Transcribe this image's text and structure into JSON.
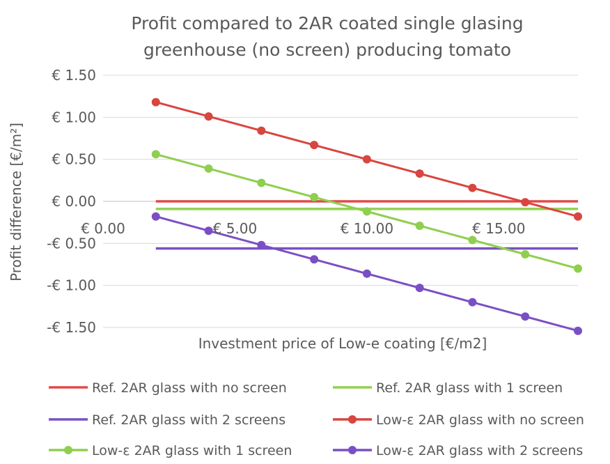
{
  "chart_data": {
    "type": "line",
    "title": "Profit compared to 2AR coated single glasing greenhouse (no screen) producing tomato",
    "title_lines": [
      "Profit compared to 2AR coated single glasing",
      "greenhouse (no screen) producing tomato"
    ],
    "xlabel": "Investment price of Low-e coating [€/m2]",
    "ylabel": "Profit difference [€/m²]",
    "xlim": [
      0,
      18
    ],
    "ylim": [
      -1.5,
      1.5
    ],
    "x_ticks": [
      0,
      5,
      10,
      15
    ],
    "x_tick_labels": [
      "€ 0.00",
      "€ 5.00",
      "€ 10.00",
      "€ 15.00"
    ],
    "y_ticks": [
      1.5,
      1.0,
      0.5,
      0.0,
      -0.5,
      -1.0,
      -1.5
    ],
    "y_tick_labels": [
      "€ 1.50",
      "€ 1.00",
      "€ 0.50",
      "€ 0.00",
      "-€ 0.50",
      "-€ 1.00",
      "-€ 1.50"
    ],
    "grid": "horizontal",
    "legend_position": "bottom",
    "series": [
      {
        "name": "Ref. 2AR glass with no screen",
        "color": "#e04a4a",
        "markers": false,
        "x": [
          2,
          18
        ],
        "y": [
          0.0,
          0.0
        ]
      },
      {
        "name": "Ref. 2AR glass with 1 screen",
        "color": "#92d050",
        "markers": false,
        "x": [
          2,
          18
        ],
        "y": [
          -0.09,
          -0.09
        ]
      },
      {
        "name": "Ref. 2AR glass with 2 screens",
        "color": "#7a4fc4",
        "markers": false,
        "x": [
          2,
          18
        ],
        "y": [
          -0.56,
          -0.56
        ]
      },
      {
        "name": "Low-ε 2AR glass with no screen",
        "color": "#d9453f",
        "markers": true,
        "x": [
          2,
          4,
          6,
          8,
          10,
          12,
          14,
          16,
          18
        ],
        "y": [
          1.18,
          1.01,
          0.84,
          0.67,
          0.5,
          0.33,
          0.16,
          -0.01,
          -0.18
        ]
      },
      {
        "name": "Low-ε 2AR glass with 1 screen",
        "color": "#8fcf4f",
        "markers": true,
        "x": [
          2,
          4,
          6,
          8,
          10,
          12,
          14,
          16,
          18
        ],
        "y": [
          0.56,
          0.39,
          0.22,
          0.05,
          -0.12,
          -0.29,
          -0.46,
          -0.63,
          -0.8
        ]
      },
      {
        "name": "Low-ε 2AR glass with 2 screens",
        "color": "#7a4fc4",
        "markers": true,
        "x": [
          2,
          4,
          6,
          8,
          10,
          12,
          14,
          16,
          18
        ],
        "y": [
          -0.18,
          -0.35,
          -0.52,
          -0.69,
          -0.86,
          -1.03,
          -1.2,
          -1.37,
          -1.54
        ]
      }
    ]
  }
}
